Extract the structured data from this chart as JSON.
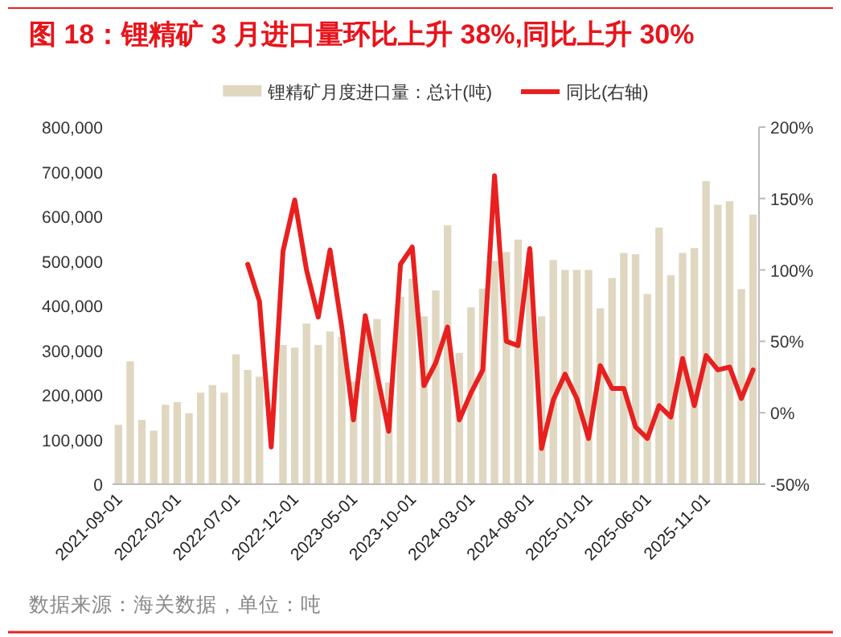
{
  "chart_data": {
    "type": "bar",
    "title": "图 18：锂精矿 3 月进口量环比上升 38%,同比上升 30%",
    "categories": [
      "2021-09-01",
      null,
      null,
      null,
      null,
      "2022-02-01",
      null,
      null,
      null,
      null,
      "2022-07-01",
      null,
      null,
      null,
      null,
      "2022-12-01",
      null,
      null,
      null,
      null,
      "2023-05-01",
      null,
      null,
      null,
      null,
      "2023-10-01",
      null,
      null,
      null,
      null,
      "2024-03-01",
      null,
      null,
      null,
      null,
      "2024-08-01",
      null,
      null,
      null,
      null,
      "2025-01-01",
      null,
      null,
      null,
      null,
      "2025-06-01",
      null,
      null,
      null,
      null,
      "2025-11-01",
      null,
      null,
      null,
      null
    ],
    "series": [
      {
        "name": "锂精矿月度进口量：总计(吨)",
        "color": "#e0d7c1",
        "values": [
          133000,
          275000,
          144000,
          120000,
          178000,
          184000,
          159000,
          205000,
          222000,
          205000,
          291000,
          256000,
          241000,
          null,
          312000,
          306000,
          360000,
          312000,
          342000,
          330000,
          230000,
          350000,
          370000,
          228000,
          420000,
          460000,
          376000,
          434000,
          580000,
          294000,
          396000,
          438000,
          500000,
          520000,
          548000,
          520000,
          376000,
          502000,
          480000,
          480000,
          480000,
          394000,
          462000,
          518000,
          515000,
          426000,
          575000,
          468000,
          518000,
          529000,
          679000,
          626000,
          634000,
          437000,
          604000
        ]
      },
      {
        "name": "同比(右轴)",
        "type": "line",
        "axis": "y2",
        "color": "#e8201f",
        "values": [
          null,
          null,
          null,
          null,
          null,
          null,
          null,
          null,
          null,
          null,
          null,
          104,
          78,
          -24,
          113,
          149,
          100,
          67,
          114,
          60,
          -5,
          68,
          27,
          -13,
          104,
          116,
          19,
          35,
          60,
          -5,
          14,
          30,
          166,
          50,
          47,
          115,
          -25,
          9,
          27,
          10,
          -18,
          33,
          17,
          17,
          -10,
          -18,
          5,
          -3,
          38,
          5,
          40,
          30,
          32,
          10,
          30
        ]
      }
    ],
    "ylim": [
      0,
      800000
    ],
    "yticks": [
      0,
      {
        "value": 100000,
        "label": "100,000"
      },
      {
        "value": 200000,
        "label": "200,000"
      },
      {
        "value": 300000,
        "label": "300,000"
      },
      {
        "value": 400000,
        "label": "400,000"
      },
      {
        "value": 500000,
        "label": "500,000"
      },
      {
        "value": 600000,
        "label": "600,000"
      },
      {
        "value": 700000,
        "label": "700,000"
      },
      {
        "value": 800000,
        "label": "800,000"
      }
    ],
    "y2lim": [
      -50,
      200
    ],
    "y2ticks": [
      {
        "value": -50,
        "label": "-50%"
      },
      {
        "value": 0,
        "label": "0%"
      },
      {
        "value": 50,
        "label": "50%"
      },
      {
        "value": 100,
        "label": "100%"
      },
      {
        "value": 150,
        "label": "150%"
      },
      {
        "value": 200,
        "label": "200%"
      }
    ],
    "legend": "top",
    "grid": false,
    "annotations": [
      "数据来源：海关数据，单位：吨"
    ]
  }
}
